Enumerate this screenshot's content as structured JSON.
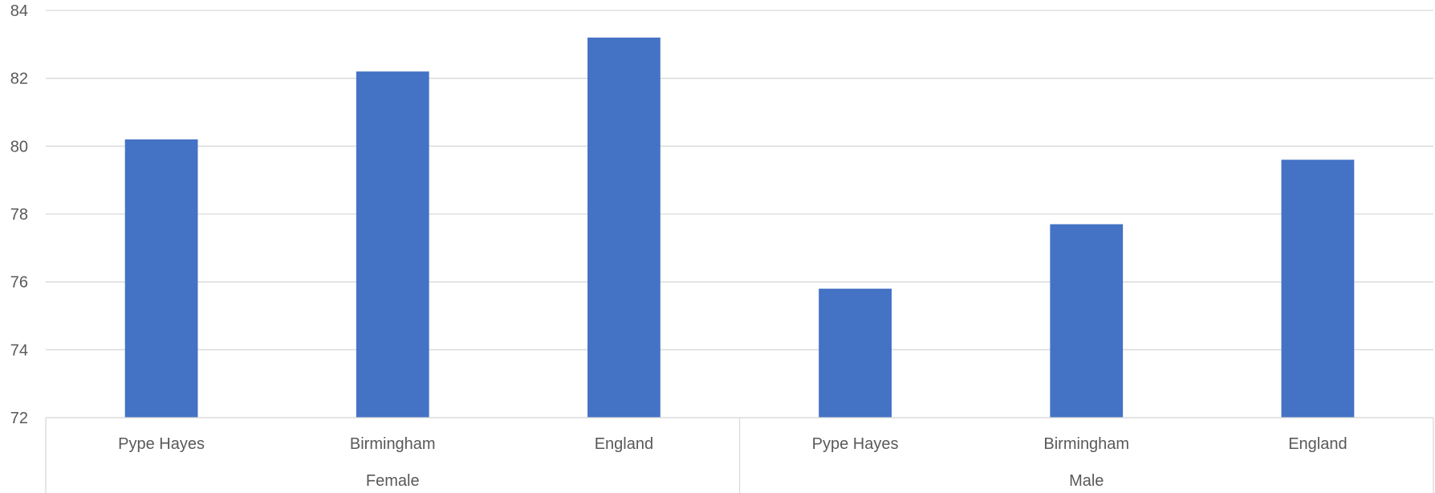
{
  "chart_data": {
    "type": "bar",
    "title": "",
    "xlabel": "",
    "ylabel": "",
    "ylim": [
      72,
      84
    ],
    "yticks": [
      72,
      74,
      76,
      78,
      80,
      82,
      84
    ],
    "grid": true,
    "legend": "none",
    "bar_color": "#4472C4",
    "groups": [
      {
        "name": "Female",
        "categories": [
          "Pype Hayes",
          "Birmingham",
          "England"
        ],
        "values": [
          80.2,
          82.2,
          83.2
        ]
      },
      {
        "name": "Male",
        "categories": [
          "Pype Hayes",
          "Birmingham",
          "England"
        ],
        "values": [
          75.8,
          77.7,
          79.6
        ]
      }
    ],
    "categories": [
      "Pype Hayes",
      "Birmingham",
      "England",
      "Pype Hayes",
      "Birmingham",
      "England"
    ],
    "values": [
      80.2,
      82.2,
      83.2,
      75.8,
      77.7,
      79.6
    ]
  }
}
